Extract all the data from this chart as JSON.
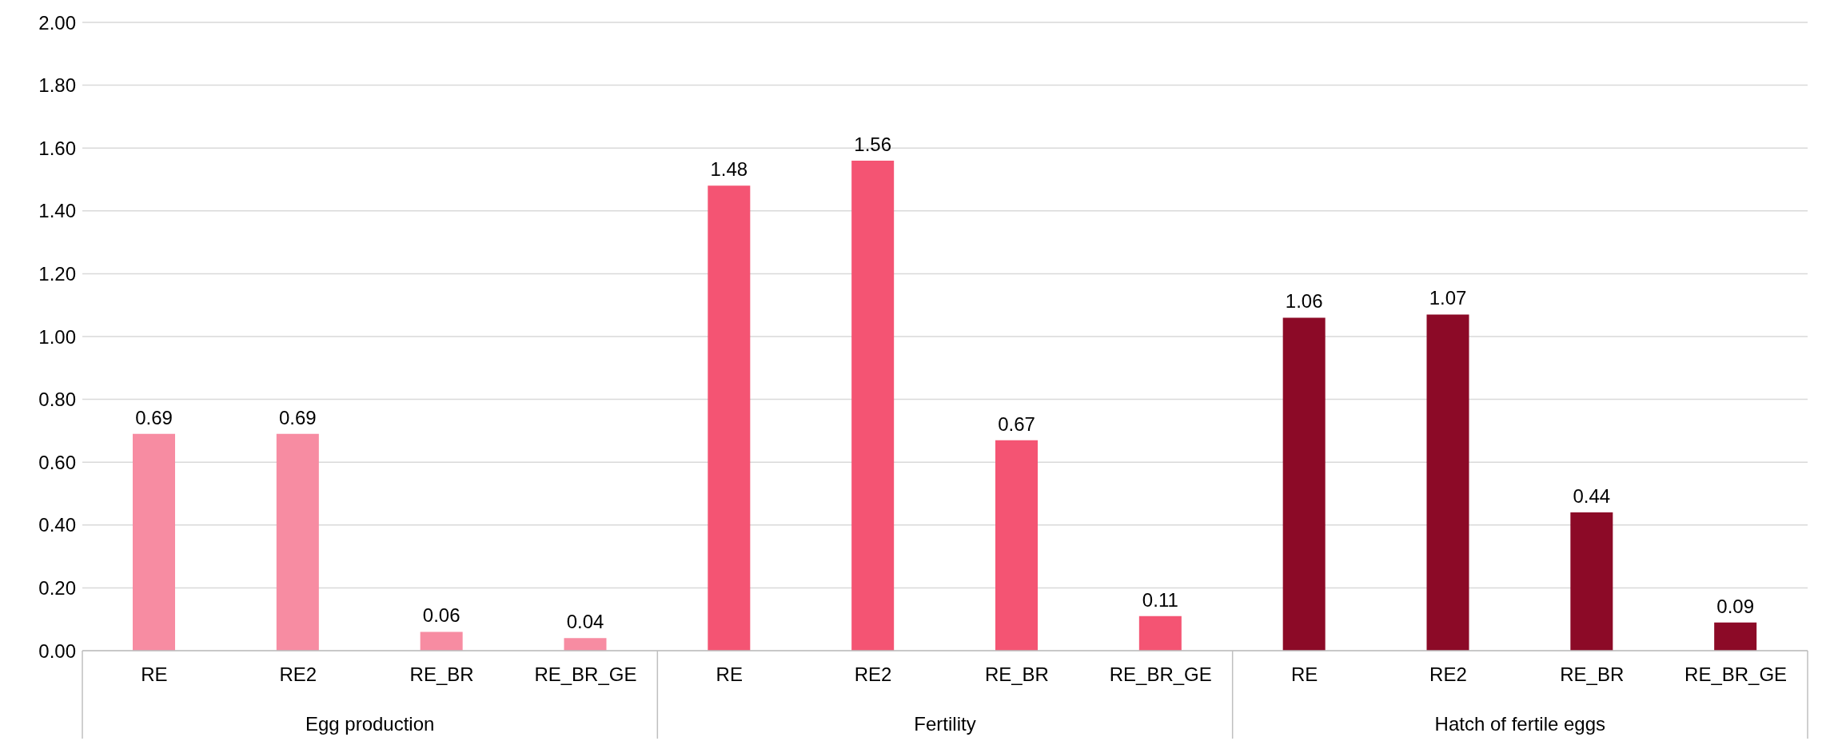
{
  "chart_data": {
    "type": "bar",
    "categories": [
      "RE",
      "RE2",
      "RE_BR",
      "RE_BR_GE",
      "RE",
      "RE2",
      "RE_BR",
      "RE_BR_GE",
      "RE",
      "RE2",
      "RE_BR",
      "RE_BR_GE"
    ],
    "series": [
      {
        "color": "#f78ca2",
        "values": [
          0.69,
          0.69,
          0.06,
          0.04,
          null,
          null,
          null,
          null,
          null,
          null,
          null,
          null
        ]
      },
      {
        "color": "#f45473",
        "values": [
          null,
          null,
          null,
          null,
          1.48,
          1.56,
          0.67,
          0.11,
          null,
          null,
          null,
          null
        ]
      },
      {
        "color": "#8c0a27",
        "values": [
          null,
          null,
          null,
          null,
          null,
          null,
          null,
          null,
          1.06,
          1.07,
          0.44,
          0.09
        ]
      }
    ],
    "ylim": [
      0,
      2
    ],
    "yticks": [
      {
        "value": 0,
        "label": "0.00"
      },
      {
        "value": 0.2,
        "label": "0.20"
      },
      {
        "value": 0.4,
        "label": "0.40"
      },
      {
        "value": 0.6,
        "label": "0.60"
      },
      {
        "value": 0.8,
        "label": "0.80"
      },
      {
        "value": 1,
        "label": "1.00"
      },
      {
        "value": 1.2,
        "label": "1.20"
      },
      {
        "value": 1.4,
        "label": "1.40"
      },
      {
        "value": 1.6,
        "label": "1.60"
      },
      {
        "value": 1.8,
        "label": "1.80"
      },
      {
        "value": 2,
        "label": "2.00"
      }
    ],
    "annotations": [
      "Egg production",
      "Fertility",
      "Hatch of fertile eggs"
    ],
    "grid": "y",
    "data_labels": true,
    "legend": false
  }
}
